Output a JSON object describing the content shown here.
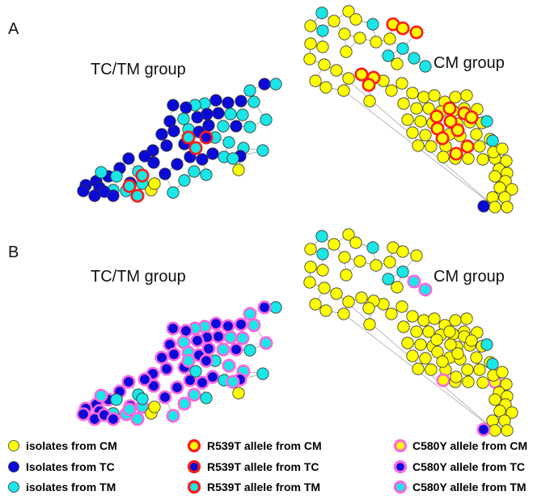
{
  "figure": {
    "panels": [
      {
        "letter": "A",
        "left_group": "TC/TM group",
        "right_group": "CM group",
        "highlighted_mutation": "R539T"
      },
      {
        "letter": "B",
        "left_group": "TC/TM group",
        "right_group": "CM group",
        "highlighted_mutation": "C580Y"
      }
    ]
  },
  "legend": {
    "items": [
      {
        "label": "isolates from CM",
        "fill": "#ffff00",
        "ring": ""
      },
      {
        "label": "Isolates from TC",
        "fill": "#0a0ad8",
        "ring": ""
      },
      {
        "label": "isolates from TM",
        "fill": "#19e6e6",
        "ring": ""
      },
      {
        "label": "R539T allele from CM",
        "fill": "#ffff00",
        "ring": "#ff1a1a"
      },
      {
        "label": "R539T allele from TC",
        "fill": "#0a0ad8",
        "ring": "#ff1a1a"
      },
      {
        "label": "R539T allele from TM",
        "fill": "#19e6e6",
        "ring": "#ff1a1a"
      },
      {
        "label": "C580Y allele from CM",
        "fill": "#ffff00",
        "ring": "#ff66dd"
      },
      {
        "label": "C580Y allele from TC",
        "fill": "#0a0ad8",
        "ring": "#ff66dd"
      },
      {
        "label": "C580Y allele from TM",
        "fill": "#19e6e6",
        "ring": "#ff66dd"
      }
    ]
  },
  "colors": {
    "CM": "#ffff00",
    "TC": "#0a0ad8",
    "TM": "#19e6e6",
    "R539T_ring": "#ff1a1a",
    "C580Y_ring": "#ff66dd",
    "node_outline": "#333333"
  }
}
